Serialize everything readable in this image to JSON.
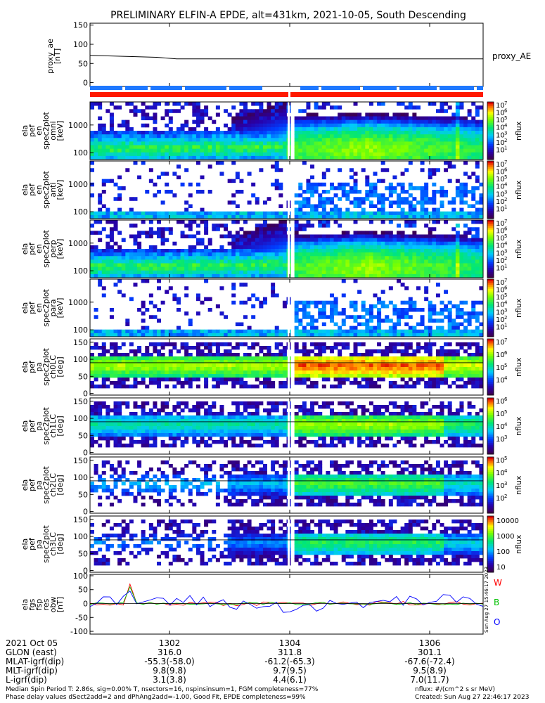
{
  "title": "PRELIMINARY ELFIN-A EPDE, alt=431km, 2021-10-05, South Descending",
  "colors": {
    "red_bar": "#ff1a00",
    "blue_bar": "#1e78ff",
    "axis": "#000000"
  },
  "chart_data": [
    {
      "type": "line",
      "id": "proxy_ae",
      "ylabel_lines": [
        "proxy_ae",
        "[nT]"
      ],
      "legend": "proxy_AE",
      "yticks": [
        "150",
        "100",
        "50",
        "0"
      ],
      "ylim": [
        -10,
        155
      ],
      "x": [
        1301.0,
        1302.0,
        1302.3,
        1303.0,
        1304.0,
        1305.0,
        1306.0,
        1306.9
      ],
      "values": [
        71,
        66,
        62,
        62,
        62,
        62,
        62,
        62
      ]
    },
    {
      "type": "heatmap",
      "id": "omni_en",
      "ylabel_lines": [
        "ela",
        "pef",
        "en",
        "spec2plot",
        "omni",
        "[keV]"
      ],
      "yticks": [
        "1000",
        "100"
      ],
      "cb_ticks": [
        "10",
        "7",
        "10",
        "6",
        "10",
        "5",
        "10",
        "4",
        "10",
        "3",
        "10",
        "2",
        "10",
        "1"
      ],
      "cb_label": "nflux"
    },
    {
      "type": "heatmap",
      "id": "anti_en",
      "ylabel_lines": [
        "ela",
        "pef",
        "en",
        "spec2plot",
        "anti",
        "[keV]"
      ],
      "yticks": [
        "1000",
        "100"
      ],
      "cb_ticks": [
        "10",
        "7",
        "10",
        "6",
        "10",
        "5",
        "10",
        "4",
        "10",
        "3",
        "10",
        "2",
        "10",
        "1"
      ],
      "cb_label": "nflux"
    },
    {
      "type": "heatmap",
      "id": "perp_en",
      "ylabel_lines": [
        "ela",
        "pef",
        "en",
        "spec2plot",
        "perp",
        "[keV]"
      ],
      "yticks": [
        "1000",
        "100"
      ],
      "cb_ticks": [
        "10",
        "7",
        "10",
        "6",
        "10",
        "5",
        "10",
        "4",
        "10",
        "3",
        "10",
        "2",
        "10",
        "1"
      ],
      "cb_label": "nflux"
    },
    {
      "type": "heatmap",
      "id": "para_en",
      "ylabel_lines": [
        "ela",
        "pef",
        "en",
        "spec2plot",
        "para",
        "[keV]"
      ],
      "yticks": [
        "1000",
        "100"
      ],
      "cb_ticks": [
        "10",
        "7",
        "10",
        "6",
        "10",
        "5",
        "10",
        "4",
        "10",
        "3",
        "10",
        "2",
        "10",
        "1"
      ],
      "cb_label": "nflux"
    },
    {
      "type": "heatmap",
      "id": "ch0LC",
      "ylabel_lines": [
        "ela",
        "pef",
        "pa",
        "spec2plot",
        "ch0LC",
        "[deg]"
      ],
      "yticks": [
        "150",
        "100",
        "50",
        "0"
      ],
      "cb_ticks": [
        "10",
        "7",
        "10",
        "6",
        "10",
        "5",
        "10",
        "4"
      ],
      "cb_label": "nflux"
    },
    {
      "type": "heatmap",
      "id": "ch1LC",
      "ylabel_lines": [
        "ela",
        "pef",
        "pa",
        "spec2plot",
        "ch1LC",
        "[deg]"
      ],
      "yticks": [
        "150",
        "100",
        "50",
        "0"
      ],
      "cb_ticks": [
        "10",
        "6",
        "10",
        "5",
        "10",
        "4",
        "10",
        "3"
      ],
      "cb_label": "nflux"
    },
    {
      "type": "heatmap",
      "id": "ch2LC",
      "ylabel_lines": [
        "ela",
        "pef",
        "pa",
        "spec2plot",
        "ch2LC",
        "[deg]"
      ],
      "yticks": [
        "150",
        "100",
        "50",
        "0"
      ],
      "cb_ticks": [
        "10",
        "5",
        "10",
        "4",
        "10",
        "3",
        "10",
        "2"
      ],
      "cb_label": "nflux"
    },
    {
      "type": "heatmap",
      "id": "ch3LC",
      "ylabel_lines": [
        "ela",
        "pef",
        "pa",
        "spec2plot",
        "ch3LC",
        "[deg]"
      ],
      "yticks": [
        "150",
        "100",
        "50",
        "0"
      ],
      "cb_ticks": [
        "10000",
        "1000",
        "100",
        "10"
      ],
      "cb_label": "nflux"
    },
    {
      "type": "line",
      "id": "fgs",
      "ylabel_lines": [
        "ela",
        "fgs",
        "fsp",
        "res",
        "obw",
        "[nT]"
      ],
      "yticks": [
        "100",
        "50",
        "0",
        "-50",
        "-100"
      ],
      "ylim": [
        -110,
        105
      ],
      "legend": [
        "W",
        "B",
        "O"
      ],
      "series_colors": [
        "#ff0000",
        "#00c000",
        "#0000ff"
      ],
      "side_text": "Sun Aug 27 15:46:17 2023"
    }
  ],
  "ephemeris": {
    "date_label": "2021 Oct 05",
    "rows": [
      {
        "label": "GLON (east)",
        "values": [
          "316.0",
          "311.8",
          "301.1"
        ]
      },
      {
        "label": "MLAT-igrf(dip)",
        "values": [
          "-55.3(-58.0)",
          "-61.2(-65.3)",
          "-67.6(-72.4)"
        ]
      },
      {
        "label": "MLT-igrf(dip)",
        "values": [
          "9.8(9.8)",
          "9.7(9.5)",
          "9.5(8.9)"
        ]
      },
      {
        "label": "L-igrf(dip)",
        "values": [
          "3.1(3.8)",
          "4.4(6.1)",
          "7.0(11.7)"
        ]
      }
    ],
    "times": [
      "1302",
      "1304",
      "1306"
    ]
  },
  "footer": {
    "line1": "Median Spin Period T: 2.86s, sig=0.00% T, nsectors=16, nspinsinsum=1, FGM completeness=77%",
    "line2": "Phase delay values dSect2add=2 and dPhAng2add=-1.00, Good Fit, EPDE completeness=99%",
    "units": "nflux: #/(cm^2 s sr MeV)",
    "created": "Created: Sun Aug 27 22:46:17 2023"
  }
}
